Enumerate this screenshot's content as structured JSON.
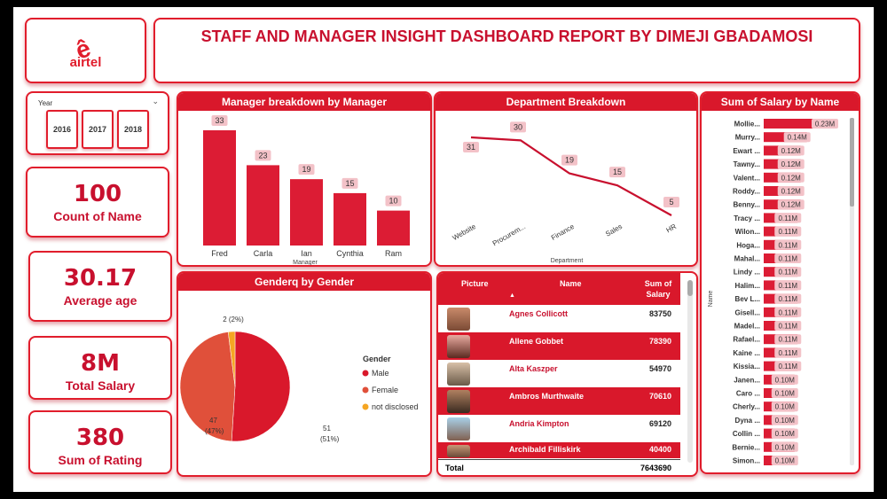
{
  "header": {
    "title": "STAFF AND MANAGER INSIGHT DASHBOARD REPORT BY DIMEJI GBADAMOSI",
    "logo_text": "airtel",
    "brand_color": "#e11d2c"
  },
  "year_slicer": {
    "label": "Year",
    "options": [
      "2016",
      "2017",
      "2018"
    ]
  },
  "kpis": [
    {
      "value": "100",
      "label": "Count of Name"
    },
    {
      "value": "30.17",
      "label": "Average age"
    },
    {
      "value": "8M",
      "label": "Total Salary"
    },
    {
      "value": "380",
      "label": "Sum of Rating"
    }
  ],
  "panels": {
    "manager_title": "Manager breakdown by Manager",
    "department_title": "Department Breakdown",
    "salary_title": "Sum of Salary by Name",
    "gender_title": "Genderq by Gender"
  },
  "table": {
    "headers": [
      "Picture",
      "Name",
      "Sum of Salary"
    ],
    "rows": [
      {
        "name": "Agnes Collicott",
        "salary": "83750"
      },
      {
        "name": "Allene Gobbet",
        "salary": "78390"
      },
      {
        "name": "Alta Kaszper",
        "salary": "54970"
      },
      {
        "name": "Ambros Murthwaite",
        "salary": "70610"
      },
      {
        "name": "Andria Kimpton",
        "salary": "69120"
      },
      {
        "name": "Archibald Filliskirk",
        "salary": "40400"
      }
    ],
    "total_label": "Total",
    "total_value": "7643690"
  },
  "chart_data": [
    {
      "type": "bar",
      "title": "Manager breakdown by Manager",
      "xlabel": "Manager",
      "ylabel": "",
      "categories": [
        "Fred",
        "Carla",
        "Ian",
        "Cynthia",
        "Ram"
      ],
      "values": [
        33,
        23,
        19,
        15,
        10
      ],
      "ylim": [
        0,
        33
      ],
      "color": "#dc1c34",
      "grid": false
    },
    {
      "type": "line",
      "title": "Department Breakdown",
      "xlabel": "Department",
      "ylabel": "",
      "categories": [
        "Website",
        "Procurem...",
        "Finance",
        "Sales",
        "HR"
      ],
      "values": [
        31,
        30,
        19,
        15,
        5
      ],
      "ylim": [
        5,
        31
      ],
      "color": "#c8102e",
      "grid": false
    },
    {
      "type": "bar",
      "orientation": "horizontal",
      "title": "Sum of Salary by Name",
      "ylabel": "Name",
      "categories": [
        "Mollie...",
        "Murry...",
        "Ewart ...",
        "Tawny...",
        "Valent...",
        "Roddy...",
        "Benny...",
        "Tracy ...",
        "Wilon...",
        "Hoga...",
        "Mahal...",
        "Lindy ...",
        "Halim...",
        "Bev L...",
        "Gisell...",
        "Madel...",
        "Rafael...",
        "Kaine ...",
        "Kissia...",
        "Janen...",
        "Caro ...",
        "Cherly...",
        "Dyna ...",
        "Collin ...",
        "Bernie...",
        "Simon..."
      ],
      "values": [
        0.23,
        0.14,
        0.12,
        0.12,
        0.12,
        0.12,
        0.12,
        0.11,
        0.11,
        0.11,
        0.11,
        0.11,
        0.11,
        0.11,
        0.11,
        0.11,
        0.11,
        0.11,
        0.11,
        0.1,
        0.1,
        0.1,
        0.1,
        0.1,
        0.1,
        0.1
      ],
      "data_labels": [
        "0.23M",
        "0.14M",
        "0.12M",
        "0.12M",
        "0.12M",
        "0.12M",
        "0.12M",
        "0.11M",
        "0.11M",
        "0.11M",
        "0.11M",
        "0.11M",
        "0.11M",
        "0.11M",
        "0.11M",
        "0.11M",
        "0.11M",
        "0.11M",
        "0.11M",
        "0.10M",
        "0.10M",
        "0.10M",
        "0.10M",
        "0.10M",
        "0.10M",
        "0.10M"
      ],
      "xlim": [
        0,
        0.23
      ],
      "color": "#dc1c34",
      "grid": false
    },
    {
      "type": "pie",
      "title": "Genderq by Gender",
      "legend_title": "Gender",
      "legend_position": "right",
      "slices": [
        {
          "label": "Male",
          "value": 51,
          "pct": "51%",
          "color": "#d9182b"
        },
        {
          "label": "Female",
          "value": 47,
          "pct": "47%",
          "color": "#e0503a"
        },
        {
          "label": "not disclosed",
          "value": 2,
          "pct": "2%",
          "color": "#f5a623"
        }
      ]
    }
  ]
}
